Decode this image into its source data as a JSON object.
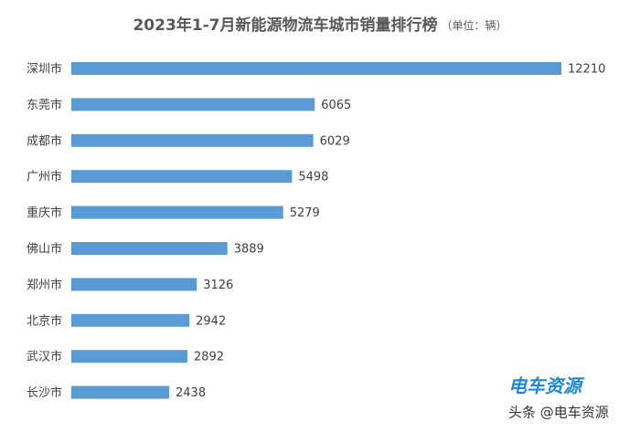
{
  "chart_data": {
    "type": "hbar",
    "title": "2023年1-7月新能源物流车城市销量排行榜",
    "subtitle": "（单位：辆）",
    "categories": [
      "深圳市",
      "东莞市",
      "成都市",
      "广州市",
      "重庆市",
      "佛山市",
      "郑州市",
      "北京市",
      "武汉市",
      "长沙市"
    ],
    "values": [
      12210,
      6065,
      6029,
      5498,
      5279,
      3889,
      3126,
      2942,
      2892,
      2438
    ],
    "color": "#5b9bd5",
    "annotations": [
      "电车资源",
      "头条 @电车资源"
    ]
  }
}
